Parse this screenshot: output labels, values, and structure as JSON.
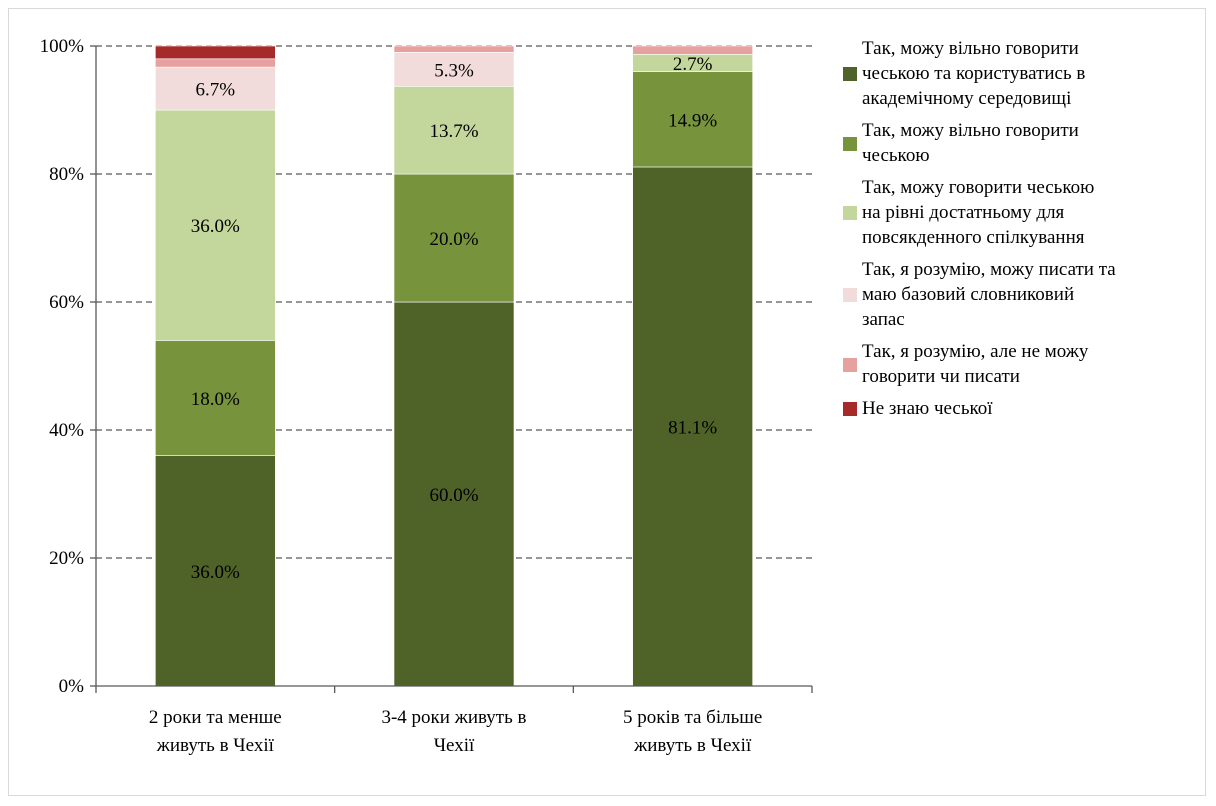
{
  "colors": {
    "grid": "#595959",
    "axis": "#595959"
  },
  "chart_data": {
    "type": "bar",
    "stacked": true,
    "percent_stacked": true,
    "categories": [
      "2 роки та менше живуть в Чехії",
      "3-4 роки живуть в Чехії",
      "5 років та більше живуть в Чехії"
    ],
    "category_lines": [
      [
        "2 роки та менше",
        "живуть в Чехії"
      ],
      [
        "3-4 роки живуть в",
        "Чехії"
      ],
      [
        "5 років та більше",
        "живуть в Чехії"
      ]
    ],
    "ylim": [
      0,
      100
    ],
    "yticks": [
      0,
      20,
      40,
      60,
      80,
      100
    ],
    "ytick_labels": [
      "0%",
      "20%",
      "40%",
      "60%",
      "80%",
      "100%"
    ],
    "grid": "horizontal dashed",
    "legend_placement": "right",
    "series": [
      {
        "name": "Так, можу вільно говорити чеською та користуватись в академічному середовищі",
        "legend_lines": [
          "Так, можу вільно говорити",
          "чеською та користуватись в",
          "академічному середовищі"
        ],
        "color": "#4f6228",
        "values": [
          36.0,
          60.0,
          81.1
        ],
        "labels": [
          "36.0%",
          "60.0%",
          "81.1%"
        ]
      },
      {
        "name": "Так, можу вільно говорити чеською",
        "legend_lines": [
          "Так, можу вільно говорити",
          "чеською"
        ],
        "color": "#77933c",
        "values": [
          18.0,
          20.0,
          14.9
        ],
        "labels": [
          "18.0%",
          "20.0%",
          "14.9%"
        ]
      },
      {
        "name": "Так, можу говорити чеською на рівні достатньому для повсякденного спілкування",
        "legend_lines": [
          "Так, можу говорити чеською",
          "на рівні достатньому для",
          "повсякденного спілкування"
        ],
        "color": "#c3d69b",
        "values": [
          36.0,
          13.7,
          2.7
        ],
        "labels": [
          "36.0%",
          "13.7%",
          "2.7%"
        ]
      },
      {
        "name": "Так, я розумію, можу писати та маю базовий словниковий запас",
        "legend_lines": [
          "Так, я розумію, можу писати та",
          "маю базовий словниковий",
          "запас"
        ],
        "color": "#f2dcdb",
        "values": [
          6.7,
          5.3,
          0.0
        ],
        "labels": [
          "6.7%",
          "5.3%",
          ""
        ]
      },
      {
        "name": "Так, я розумію, але не можу говорити чи писати",
        "legend_lines": [
          "Так, я розумію, але не можу",
          "говорити чи писати"
        ],
        "color": "#e6a0a0",
        "values": [
          1.3,
          1.0,
          1.3
        ],
        "labels": [
          "",
          "",
          ""
        ]
      },
      {
        "name": "Не знаю чеської",
        "legend_lines": [
          "Не знаю чеської"
        ],
        "color": "#a52a2a",
        "values": [
          2.0,
          0.0,
          0.0
        ],
        "labels": [
          "",
          "",
          ""
        ]
      }
    ]
  }
}
